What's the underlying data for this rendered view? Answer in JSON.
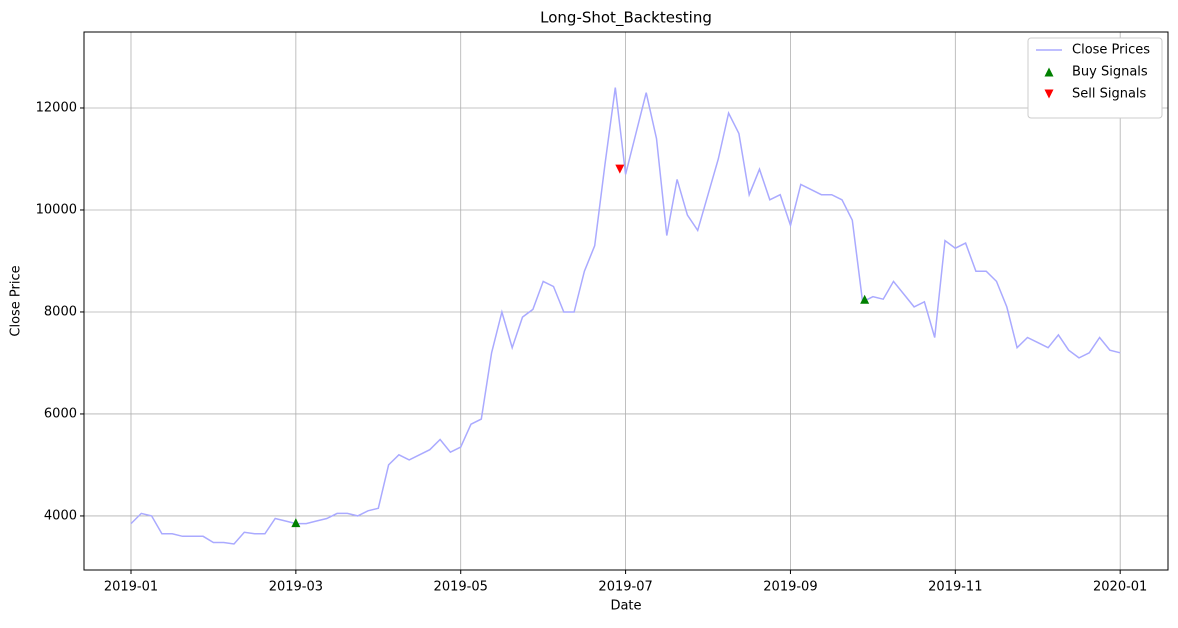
{
  "chart_data": {
    "type": "line",
    "title": "Long-Shot_Backtesting",
    "x_label": "Date",
    "y_label": "Close Price",
    "xlim": [
      -0.57,
      12.58
    ],
    "ylim": [
      2940,
      13490
    ],
    "xticks": [
      {
        "value": 0,
        "label": "2019-01"
      },
      {
        "value": 2,
        "label": "2019-03"
      },
      {
        "value": 4,
        "label": "2019-05"
      },
      {
        "value": 6,
        "label": "2019-07"
      },
      {
        "value": 8,
        "label": "2019-09"
      },
      {
        "value": 10,
        "label": "2019-11"
      },
      {
        "value": 12,
        "label": "2020-01"
      }
    ],
    "yticks": [
      4000,
      6000,
      8000,
      10000,
      12000
    ],
    "grid": true,
    "legend": "upper right",
    "series": [
      {
        "name": "Close Prices",
        "color": "#aaaaff",
        "marker": "line",
        "x": [
          0,
          0.125,
          0.25,
          0.375,
          0.5,
          0.625,
          0.75,
          0.875,
          1,
          1.125,
          1.25,
          1.375,
          1.5,
          1.625,
          1.75,
          1.875,
          2,
          2.125,
          2.25,
          2.375,
          2.5,
          2.625,
          2.75,
          2.875,
          3,
          3.125,
          3.25,
          3.375,
          3.5,
          3.625,
          3.75,
          3.875,
          4,
          4.125,
          4.25,
          4.375,
          4.5,
          4.625,
          4.75,
          4.875,
          5,
          5.125,
          5.25,
          5.375,
          5.5,
          5.625,
          5.75,
          5.875,
          6,
          6.125,
          6.25,
          6.375,
          6.5,
          6.625,
          6.75,
          6.875,
          7,
          7.125,
          7.25,
          7.375,
          7.5,
          7.625,
          7.75,
          7.875,
          8,
          8.125,
          8.25,
          8.375,
          8.5,
          8.625,
          8.75,
          8.875,
          9,
          9.125,
          9.25,
          9.375,
          9.5,
          9.625,
          9.75,
          9.875,
          10,
          10.125,
          10.25,
          10.375,
          10.5,
          10.625,
          10.75,
          10.875,
          11,
          11.125,
          11.25,
          11.375,
          11.5,
          11.625,
          11.75,
          11.875,
          12
        ],
        "values": [
          3850,
          4050,
          4000,
          3650,
          3650,
          3600,
          3600,
          3600,
          3480,
          3480,
          3450,
          3680,
          3650,
          3650,
          3950,
          3900,
          3850,
          3850,
          3900,
          3950,
          4050,
          4050,
          4000,
          4100,
          4150,
          5000,
          5200,
          5100,
          5200,
          5300,
          5500,
          5250,
          5350,
          5800,
          5900,
          7200,
          8000,
          7300,
          7900,
          8050,
          8600,
          8500,
          8000,
          8000,
          8800,
          9300,
          10900,
          12400,
          10700,
          11500,
          12300,
          11400,
          9500,
          10600,
          9900,
          9600,
          10300,
          11000,
          11900,
          11500,
          10300,
          10800,
          10200,
          10300,
          9700,
          10500,
          10400,
          10300,
          10300,
          10200,
          9800,
          8200,
          8300,
          8250,
          8600,
          8350,
          8100,
          8200,
          7500,
          9400,
          9250,
          9350,
          8800,
          8800,
          8600,
          8100,
          7300,
          7500,
          7400,
          7300,
          7550,
          7250,
          7100,
          7200,
          7500,
          7250,
          7200
        ]
      },
      {
        "name": "Buy Signals",
        "color": "#008000",
        "marker": "up",
        "x": [
          2.0,
          8.9
        ],
        "values": [
          3870,
          8250
        ]
      },
      {
        "name": "Sell Signals",
        "color": "#ff0000",
        "marker": "down",
        "x": [
          5.93
        ],
        "values": [
          10800
        ]
      }
    ]
  }
}
